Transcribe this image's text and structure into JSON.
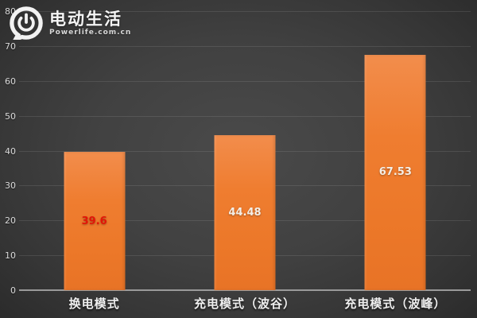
{
  "logo": {
    "title": "电动生活",
    "subtitle": "Powerlife.com.cn",
    "icon": "power-icon"
  },
  "chart_data": {
    "type": "bar",
    "categories": [
      "换电模式",
      "充电模式（波谷）",
      "充电模式（波峰）"
    ],
    "values": [
      39.6,
      44.48,
      67.53
    ],
    "value_labels": [
      "39.6",
      "44.48",
      "67.53"
    ],
    "value_label_colors": [
      "#e21508",
      "#f4eee6",
      "#f4eee6"
    ],
    "title": "",
    "xlabel": "",
    "ylabel": "",
    "ylim": [
      0,
      80
    ],
    "yticks": [
      0,
      10,
      20,
      30,
      40,
      50,
      60,
      70,
      80
    ],
    "grid": true,
    "legend": "none",
    "bar_color": "#ed7d31",
    "background_color": "#3f3f3f",
    "axis_line_color": "#9a9a9a"
  }
}
